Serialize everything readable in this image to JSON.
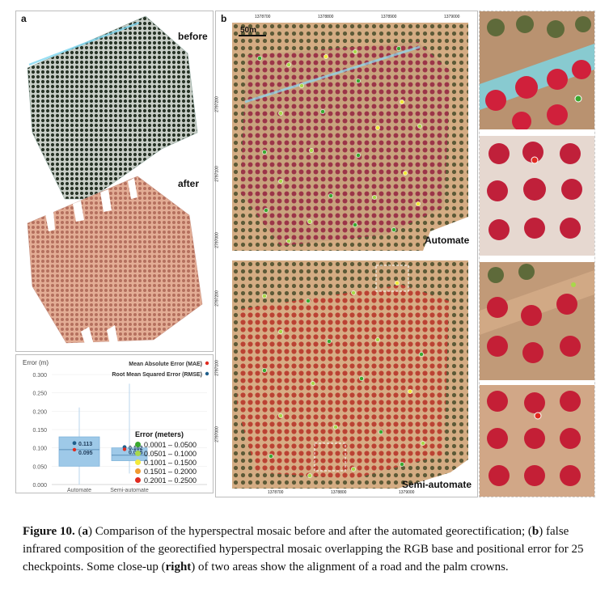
{
  "panel_a": {
    "label": "a",
    "before_label": "before",
    "after_label": "after"
  },
  "panel_b": {
    "label": "b",
    "scale_label": "50m",
    "top_ticks": [
      "1378700",
      "1378800",
      "1378900",
      "1379000"
    ],
    "bottom_ticks": [
      "1378700",
      "1378800",
      "1379000"
    ],
    "left_ticks_top": [
      "2797200",
      "2797100",
      "2797000"
    ],
    "left_ticks_bottom": [
      "2797200",
      "2797100",
      "2797000"
    ],
    "map1_label": "Automate",
    "map2_label": "Semi-automate"
  },
  "legend": {
    "title": "Error (meters)",
    "items": [
      {
        "label": "0.0001 – 0.0500",
        "color": "#3aa82f"
      },
      {
        "label": "0.0501 – 0.1000",
        "color": "#a8d84a"
      },
      {
        "label": "0.1001 – 0.1500",
        "color": "#f2ea3a"
      },
      {
        "label": "0.1501 – 0.2000",
        "color": "#f09a30"
      },
      {
        "label": "0.2001 – 0.2500",
        "color": "#e02b20"
      }
    ]
  },
  "chart_data": {
    "type": "box",
    "title": "",
    "ylabel": "Error (m)",
    "categories": [
      "Automate",
      "Semi-automate"
    ],
    "ylim": [
      0,
      0.3
    ],
    "yticks": [
      "0.000",
      "0.050",
      "0.100",
      "0.150",
      "0.200",
      "0.250",
      "0.300"
    ],
    "legend": [
      {
        "name": "Mean Absolute Error (MAE)",
        "color": "#e02b20"
      },
      {
        "name": "Root Mean Squared Error (RMSE)",
        "color": "#1f5f8b"
      }
    ],
    "boxes": [
      {
        "category": "Automate",
        "min": 0.0,
        "q1": 0.05,
        "median": 0.095,
        "q3": 0.13,
        "max": 0.21,
        "mae": 0.095,
        "rmse": 0.113,
        "mae_label": "0.095",
        "rmse_label": "0.113"
      },
      {
        "category": "Semi-automate",
        "min": 0.03,
        "q1": 0.065,
        "median": 0.08,
        "q3": 0.1,
        "max": 0.275,
        "mae": 0.096,
        "rmse": 0.102,
        "mae_label": "0.096",
        "rmse_label": "0.102"
      }
    ],
    "colors": {
      "box": "#9ec9e8",
      "box_edge": "#7fb4db",
      "whisker": "#b9d6ec"
    }
  },
  "caption": {
    "figure_label": "Figure 10.",
    "t1": " (",
    "b_a": "a",
    "t2": ") Comparison of the hyperspectral mosaic before and after the automated georectification; (",
    "b_b": "b",
    "t3": ") false infrared composition of the georectified hyperspectral mosaic overlapping the RGB base and positional error for 25 checkpoints. Some close-up (",
    "b_right": "right",
    "t4": ") of two areas show the alignment of a road and the palm crowns."
  }
}
